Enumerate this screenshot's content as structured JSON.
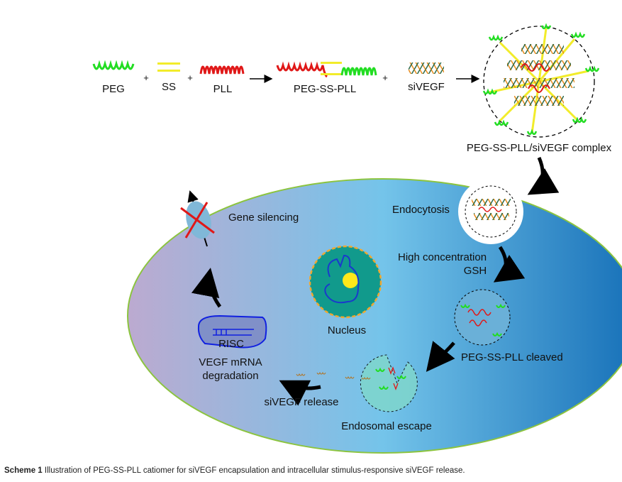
{
  "labels": {
    "peg": "PEG",
    "ss": "SS",
    "pll": "PLL",
    "peg_ss_pll": "PEG-SS-PLL",
    "sivegf": "siVEGF",
    "plus": "+",
    "complex": "PEG-SS-PLL/siVEGF complex",
    "endocytosis": "Endocytosis",
    "gsh_line1": "High concentration",
    "gsh_line2": "GSH",
    "cleaved": "PEG-SS-PLL cleaved",
    "endosomal_escape": "Endosomal escape",
    "sivegf_release": "siVEGF release",
    "risc": "RISC",
    "mrna_line1": "VEGF mRNA",
    "mrna_line2": "degradation",
    "gene_silencing": "Gene silencing",
    "nucleus": "Nucleus"
  },
  "caption": {
    "label": "Scheme 1",
    "text": "Illustration of PEG-SS-PLL catiomer for siVEGF encapsulation and intracellular stimulus-responsive siVEGF release."
  },
  "colors": {
    "peg": "#22dd22",
    "ss": "#f2ec2a",
    "pll": "#e01818",
    "cell_border": "#8cc43f",
    "nucleus": "#119a8c",
    "nucleolus": "#ffe81a"
  }
}
